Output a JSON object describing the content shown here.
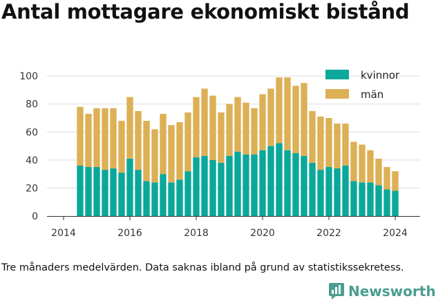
{
  "title": "Antal mottagare ekonomiskt bistånd",
  "footnote": "Tre månaders medelvärden. Data saknas ibland på grund av statistikssekretess.",
  "brand": {
    "name": "Newsworthy",
    "icon": "newsworthy-logo-icon",
    "color": "#4a9e8f"
  },
  "chart_data": {
    "type": "bar",
    "stacked": true,
    "x_start": 2014.5,
    "x_step": 0.25,
    "x_range": [
      2013.5,
      2024.75
    ],
    "x_ticks": [
      2014,
      2016,
      2018,
      2020,
      2022,
      2024
    ],
    "x_tick_labels": [
      "2014",
      "2016",
      "2018",
      "2020",
      "2022",
      "2024"
    ],
    "ylim": [
      0,
      105
    ],
    "y_ticks": [
      0,
      20,
      40,
      60,
      80,
      100
    ],
    "y_tick_labels": [
      "0",
      "20",
      "40",
      "60",
      "80",
      "100"
    ],
    "grid": true,
    "legend_position": "top-right",
    "series": [
      {
        "name": "kvinnor",
        "color": "#0aa89a",
        "values": [
          36,
          35,
          35,
          33,
          34,
          31,
          41,
          33,
          25,
          24,
          30,
          24,
          26,
          32,
          42,
          43,
          40,
          38,
          43,
          46,
          44,
          44,
          47,
          50,
          52,
          47,
          45,
          43,
          38,
          33,
          35,
          34,
          36,
          25,
          24,
          24,
          22,
          19,
          18
        ]
      },
      {
        "name": "män",
        "color": "#ddb056",
        "values": [
          42,
          38,
          42,
          44,
          43,
          37,
          44,
          42,
          43,
          38,
          43,
          41,
          41,
          42,
          43,
          48,
          46,
          36,
          37,
          39,
          37,
          33,
          40,
          41,
          47,
          52,
          48,
          52,
          37,
          38,
          35,
          32,
          30,
          28,
          27,
          23,
          19,
          16,
          14
        ]
      }
    ]
  }
}
